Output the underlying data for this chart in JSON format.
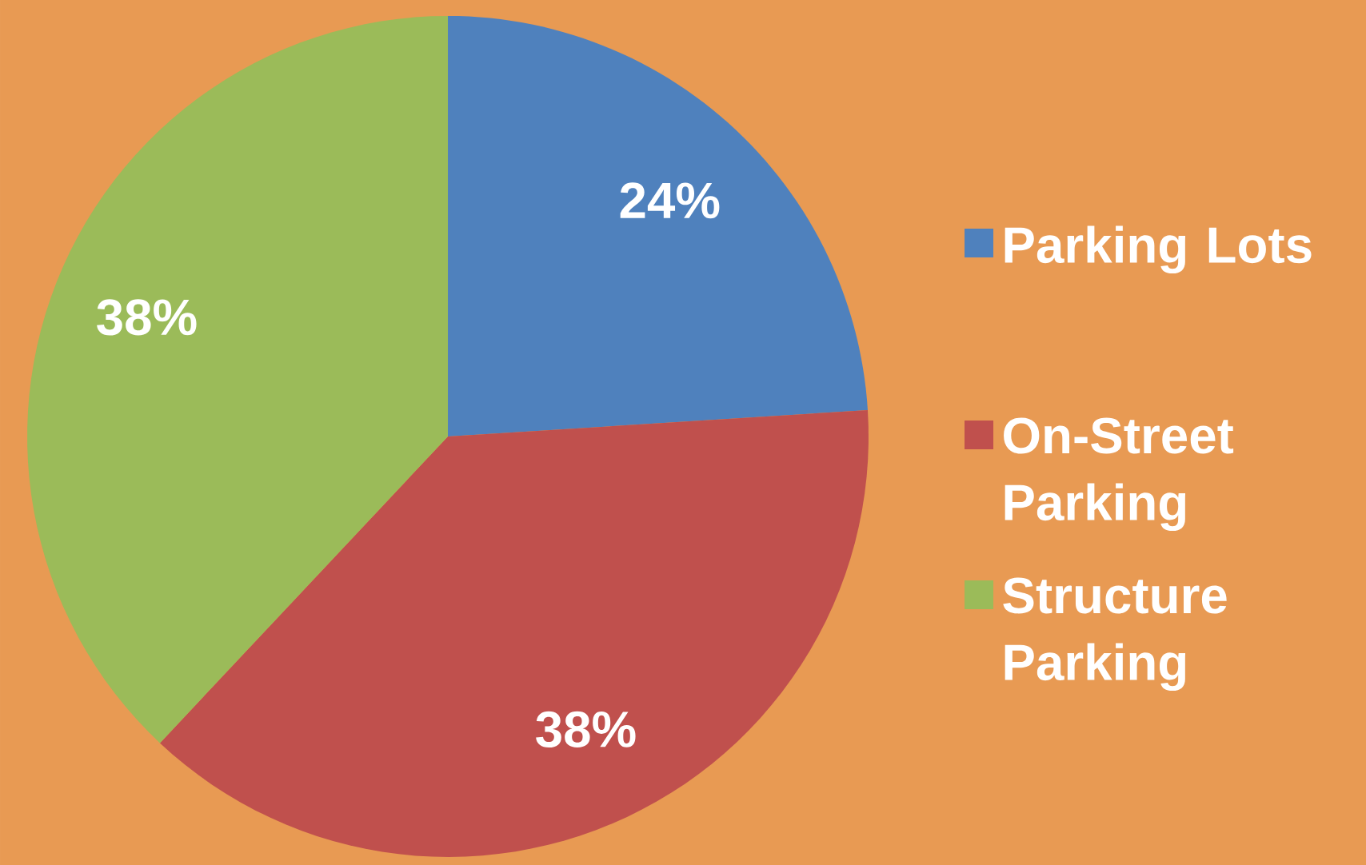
{
  "chart_data": {
    "type": "pie",
    "categories": [
      "Parking Lots",
      "On-Street Parking",
      "Structure Parking"
    ],
    "values": [
      24,
      38,
      38
    ],
    "value_labels": [
      "24%",
      "38%",
      "38%"
    ],
    "colors": [
      "#4f81bd",
      "#c0504d",
      "#9bbb59"
    ],
    "legend": "right"
  }
}
